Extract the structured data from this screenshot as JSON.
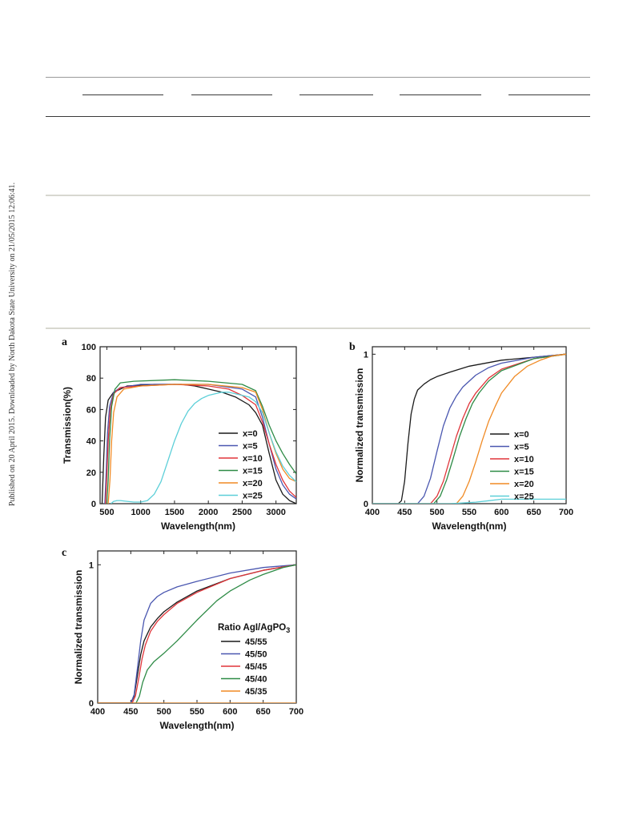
{
  "side_note": "Published on 20 April 2015. Downloaded by North Dakota State University on 21/05/2015 12:06:41.",
  "colors": {
    "black": "#1a1a1a",
    "blue": "#4a57b0",
    "red": "#e0353a",
    "green": "#2e8b46",
    "orange": "#f08a24",
    "cyan": "#5ccfd8"
  },
  "chart_data": [
    {
      "panel": "a",
      "type": "line",
      "xlabel": "Wavelength(nm)",
      "ylabel": "Transmission(%)",
      "xlim": [
        400,
        3300
      ],
      "ylim": [
        0,
        100
      ],
      "xticks": [
        500,
        1000,
        1500,
        2000,
        2500,
        3000
      ],
      "yticks": [
        0,
        20,
        40,
        60,
        80,
        100
      ],
      "grid": false,
      "legend_position": "bottom-right",
      "legend_title": "",
      "series": [
        {
          "name": "x=0",
          "color": "black",
          "x": [
            430,
            455,
            480,
            520,
            600,
            800,
            1200,
            1600,
            1800,
            2000,
            2200,
            2400,
            2600,
            2700,
            2800,
            2900,
            3000,
            3100,
            3200,
            3300
          ],
          "y": [
            0,
            30,
            55,
            66,
            71,
            75,
            76,
            76,
            75,
            73,
            71,
            68,
            63,
            58,
            50,
            32,
            15,
            6,
            2,
            0
          ]
        },
        {
          "name": "x=5",
          "color": "blue",
          "x": [
            470,
            490,
            510,
            540,
            600,
            700,
            1000,
            1500,
            2000,
            2500,
            2700,
            2800,
            2900,
            3000,
            3100,
            3200,
            3300
          ],
          "y": [
            0,
            20,
            45,
            62,
            71,
            74,
            76,
            76,
            76,
            73,
            68,
            55,
            38,
            22,
            12,
            6,
            3
          ]
        },
        {
          "name": "x=10",
          "color": "red",
          "x": [
            480,
            500,
            520,
            550,
            600,
            700,
            1000,
            1500,
            2000,
            2300,
            2500,
            2700,
            2800,
            2900,
            3000,
            3100,
            3200,
            3300
          ],
          "y": [
            0,
            18,
            40,
            60,
            70,
            74,
            75,
            76,
            75,
            73,
            69,
            63,
            52,
            38,
            25,
            15,
            8,
            4
          ]
        },
        {
          "name": "x=15",
          "color": "green",
          "x": [
            500,
            520,
            540,
            570,
            620,
            700,
            900,
            1500,
            2000,
            2500,
            2700,
            2800,
            2900,
            3000,
            3100,
            3200,
            3300
          ],
          "y": [
            0,
            15,
            40,
            62,
            73,
            77,
            78,
            79,
            78,
            76,
            72,
            62,
            50,
            40,
            32,
            25,
            19
          ]
        },
        {
          "name": "x=20",
          "color": "orange",
          "x": [
            520,
            545,
            570,
            600,
            650,
            750,
            1000,
            1500,
            2000,
            2500,
            2700,
            2800,
            2900,
            3000,
            3100,
            3200,
            3300
          ],
          "y": [
            0,
            15,
            40,
            58,
            68,
            73,
            75,
            76,
            76,
            74,
            71,
            60,
            45,
            32,
            22,
            16,
            14
          ]
        },
        {
          "name": "x=25",
          "color": "cyan",
          "x": [
            560,
            600,
            650,
            700,
            800,
            900,
            1000,
            1100,
            1200,
            1300,
            1400,
            1500,
            1600,
            1700,
            1800,
            1900,
            2000,
            2100,
            2200,
            2300,
            2400,
            2500,
            2600,
            2700,
            2800,
            2900,
            3000,
            3100,
            3200,
            3300
          ],
          "y": [
            0,
            1.5,
            2,
            2,
            1.5,
            1,
            1,
            2,
            6,
            14,
            27,
            40,
            51,
            59,
            64,
            67,
            69,
            70,
            71,
            71,
            70,
            69,
            68,
            65,
            58,
            45,
            33,
            24,
            18,
            14
          ]
        }
      ]
    },
    {
      "panel": "b",
      "type": "line",
      "xlabel": "Wavelength(nm)",
      "ylabel": "Normalized transmission",
      "xlim": [
        400,
        700
      ],
      "ylim": [
        0,
        1.05
      ],
      "xticks": [
        400,
        450,
        500,
        550,
        600,
        650,
        700
      ],
      "yticks": [
        0,
        1
      ],
      "grid": false,
      "legend_position": "bottom-right",
      "legend_title": "",
      "series": [
        {
          "name": "x=0",
          "color": "black",
          "x": [
            400,
            440,
            445,
            450,
            455,
            460,
            465,
            470,
            480,
            490,
            500,
            520,
            550,
            600,
            650,
            700
          ],
          "y": [
            0,
            0,
            0.02,
            0.15,
            0.4,
            0.6,
            0.7,
            0.76,
            0.8,
            0.83,
            0.85,
            0.88,
            0.92,
            0.96,
            0.98,
            1.0
          ]
        },
        {
          "name": "x=5",
          "color": "blue",
          "x": [
            400,
            470,
            480,
            490,
            500,
            510,
            520,
            530,
            540,
            560,
            580,
            600,
            650,
            700
          ],
          "y": [
            0,
            0,
            0.05,
            0.17,
            0.35,
            0.52,
            0.64,
            0.72,
            0.78,
            0.86,
            0.91,
            0.94,
            0.98,
            1.0
          ]
        },
        {
          "name": "x=10",
          "color": "red",
          "x": [
            400,
            490,
            500,
            510,
            520,
            530,
            540,
            550,
            560,
            580,
            600,
            650,
            700
          ],
          "y": [
            0,
            0,
            0.05,
            0.15,
            0.3,
            0.45,
            0.57,
            0.67,
            0.74,
            0.84,
            0.9,
            0.97,
            1.0
          ]
        },
        {
          "name": "x=15",
          "color": "green",
          "x": [
            400,
            495,
            505,
            515,
            525,
            535,
            545,
            555,
            565,
            580,
            600,
            650,
            700
          ],
          "y": [
            0,
            0,
            0.05,
            0.16,
            0.3,
            0.45,
            0.57,
            0.67,
            0.74,
            0.82,
            0.89,
            0.97,
            1.0
          ]
        },
        {
          "name": "x=20",
          "color": "orange",
          "x": [
            400,
            530,
            540,
            550,
            560,
            570,
            580,
            590,
            600,
            620,
            640,
            660,
            680,
            700
          ],
          "y": [
            0,
            0,
            0.05,
            0.15,
            0.28,
            0.42,
            0.55,
            0.65,
            0.74,
            0.85,
            0.92,
            0.96,
            0.99,
            1.0
          ]
        },
        {
          "name": "x=25",
          "color": "cyan",
          "x": [
            400,
            520,
            560,
            580,
            600,
            620,
            640,
            660,
            680,
            700
          ],
          "y": [
            0,
            0,
            0.01,
            0.02,
            0.03,
            0.03,
            0.03,
            0.03,
            0.03,
            0.03
          ]
        }
      ]
    },
    {
      "panel": "c",
      "type": "line",
      "xlabel": "Wavelength(nm)",
      "ylabel": "Normalized transmission",
      "xlim": [
        400,
        700
      ],
      "ylim": [
        0,
        1.1
      ],
      "xticks": [
        400,
        450,
        500,
        550,
        600,
        650,
        700
      ],
      "yticks": [
        0,
        1
      ],
      "grid": false,
      "legend_position": "right",
      "legend_title": "Ratio AgI/AgPO3",
      "series": [
        {
          "name": "45/55",
          "color": "black",
          "x": [
            400,
            450,
            455,
            460,
            465,
            470,
            480,
            490,
            500,
            520,
            550,
            600,
            650,
            700
          ],
          "y": [
            0,
            0,
            0.05,
            0.2,
            0.35,
            0.45,
            0.55,
            0.61,
            0.66,
            0.73,
            0.81,
            0.9,
            0.96,
            1.0
          ]
        },
        {
          "name": "45/50",
          "color": "blue",
          "x": [
            400,
            450,
            455,
            460,
            465,
            470,
            480,
            490,
            500,
            520,
            550,
            600,
            650,
            700
          ],
          "y": [
            0,
            0,
            0.06,
            0.25,
            0.45,
            0.6,
            0.72,
            0.77,
            0.8,
            0.84,
            0.88,
            0.94,
            0.98,
            1.0
          ]
        },
        {
          "name": "45/45",
          "color": "red",
          "x": [
            400,
            452,
            457,
            462,
            467,
            472,
            480,
            490,
            500,
            520,
            550,
            600,
            650,
            700
          ],
          "y": [
            0,
            0,
            0.05,
            0.18,
            0.32,
            0.42,
            0.52,
            0.59,
            0.64,
            0.72,
            0.8,
            0.9,
            0.96,
            1.0
          ]
        },
        {
          "name": "45/40",
          "color": "green",
          "x": [
            400,
            458,
            463,
            468,
            475,
            485,
            500,
            520,
            550,
            580,
            600,
            630,
            650,
            680,
            700
          ],
          "y": [
            0,
            0,
            0.05,
            0.15,
            0.24,
            0.3,
            0.36,
            0.45,
            0.6,
            0.74,
            0.81,
            0.89,
            0.93,
            0.98,
            1.0
          ]
        },
        {
          "name": "45/35",
          "color": "orange",
          "x": [
            400,
            700
          ],
          "y": [
            0,
            0
          ]
        }
      ]
    }
  ]
}
